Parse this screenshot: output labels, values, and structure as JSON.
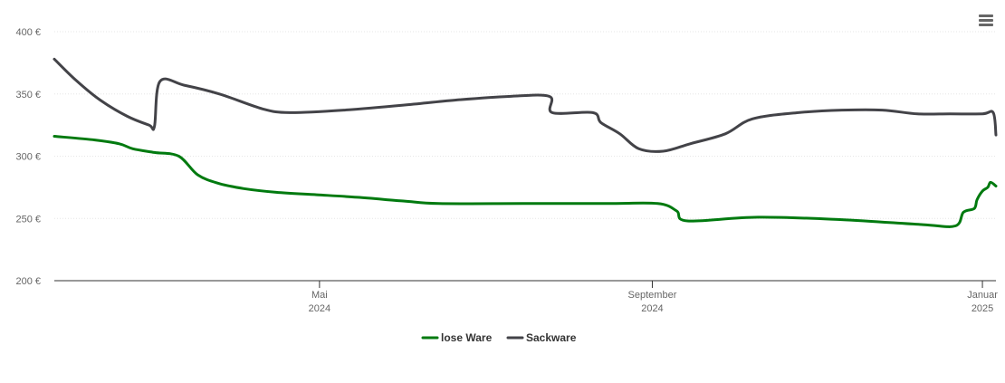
{
  "chart_data": {
    "type": "line",
    "yticks": [
      {
        "value": 200,
        "label": "200 €"
      },
      {
        "value": 250,
        "label": "250 €"
      },
      {
        "value": 300,
        "label": "300 €"
      },
      {
        "value": 350,
        "label": "350 €"
      },
      {
        "value": 400,
        "label": "400 €"
      }
    ],
    "ylim": [
      200,
      400
    ],
    "xlim": [
      "2024-01-24",
      "2025-01-06"
    ],
    "xticks": [
      {
        "date": "2024-05-01",
        "label1": "Mai",
        "label2": "2024"
      },
      {
        "date": "2024-09-01",
        "label1": "September",
        "label2": "2024"
      },
      {
        "date": "2025-01-01",
        "label1": "Januar",
        "label2": "2025"
      }
    ],
    "grid": true,
    "legend_position": "bottom",
    "series": [
      {
        "name": "lose Ware",
        "color": "#007a0f",
        "points": [
          [
            "2024-01-24",
            316
          ],
          [
            "2024-02-08",
            313
          ],
          [
            "2024-02-17",
            310
          ],
          [
            "2024-02-22",
            306
          ],
          [
            "2024-03-01",
            303
          ],
          [
            "2024-03-10",
            300
          ],
          [
            "2024-03-17",
            285
          ],
          [
            "2024-03-25",
            278
          ],
          [
            "2024-04-03",
            274
          ],
          [
            "2024-04-15",
            271
          ],
          [
            "2024-04-30",
            269
          ],
          [
            "2024-05-15",
            267
          ],
          [
            "2024-06-01",
            264
          ],
          [
            "2024-06-14",
            262
          ],
          [
            "2024-07-15",
            262
          ],
          [
            "2024-08-15",
            262
          ],
          [
            "2024-09-03",
            262
          ],
          [
            "2024-09-10",
            256
          ],
          [
            "2024-09-14",
            248
          ],
          [
            "2024-10-10",
            251
          ],
          [
            "2024-11-10",
            249
          ],
          [
            "2024-12-10",
            245
          ],
          [
            "2024-12-22",
            244
          ],
          [
            "2024-12-25",
            255
          ],
          [
            "2024-12-29",
            258
          ],
          [
            "2024-12-30",
            265
          ],
          [
            "2025-01-01",
            272
          ],
          [
            "2025-01-03",
            275
          ],
          [
            "2025-01-04",
            279
          ],
          [
            "2025-01-06",
            276
          ]
        ]
      },
      {
        "name": "Sackware",
        "color": "#434348",
        "points": [
          [
            "2024-01-24",
            378
          ],
          [
            "2024-02-01",
            361
          ],
          [
            "2024-02-10",
            345
          ],
          [
            "2024-02-20",
            332
          ],
          [
            "2024-02-28",
            325
          ],
          [
            "2024-03-01",
            324
          ],
          [
            "2024-03-03",
            360
          ],
          [
            "2024-03-12",
            357
          ],
          [
            "2024-03-25",
            350
          ],
          [
            "2024-04-10",
            338
          ],
          [
            "2024-04-20",
            335
          ],
          [
            "2024-05-10",
            337
          ],
          [
            "2024-06-01",
            341
          ],
          [
            "2024-06-20",
            345
          ],
          [
            "2024-07-10",
            348
          ],
          [
            "2024-07-25",
            348
          ],
          [
            "2024-07-26",
            335
          ],
          [
            "2024-08-10",
            335
          ],
          [
            "2024-08-13",
            327
          ],
          [
            "2024-08-20",
            318
          ],
          [
            "2024-08-27",
            306
          ],
          [
            "2024-09-05",
            304
          ],
          [
            "2024-09-15",
            310
          ],
          [
            "2024-09-28",
            318
          ],
          [
            "2024-10-08",
            330
          ],
          [
            "2024-10-25",
            335
          ],
          [
            "2024-11-10",
            337
          ],
          [
            "2024-11-25",
            337
          ],
          [
            "2024-12-08",
            334
          ],
          [
            "2024-12-20",
            334
          ],
          [
            "2025-01-01",
            334
          ],
          [
            "2025-01-05",
            335
          ],
          [
            "2025-01-06",
            317
          ]
        ]
      }
    ]
  }
}
